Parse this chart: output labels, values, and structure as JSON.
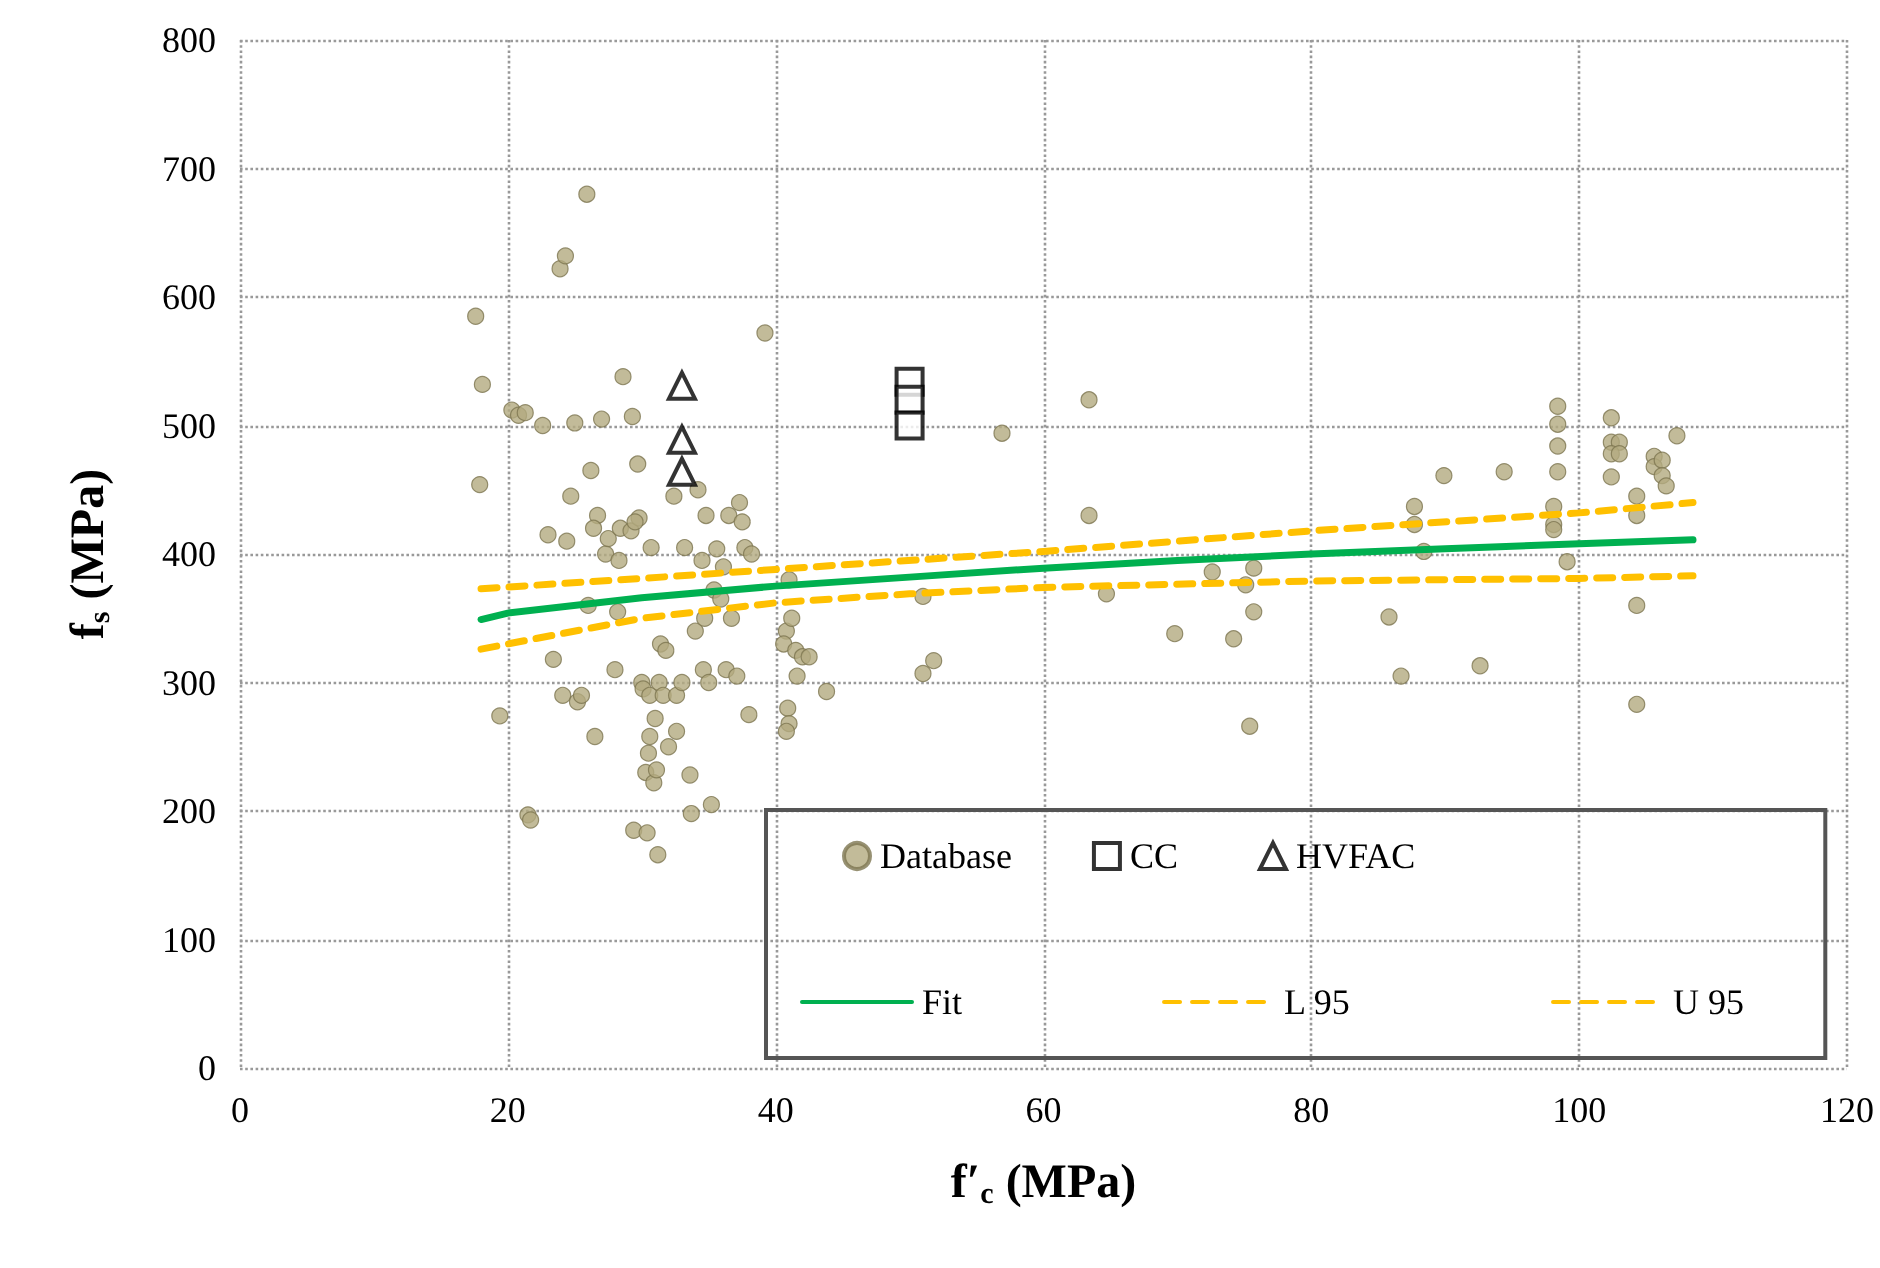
{
  "chart_data": {
    "type": "scatter",
    "xlabel": "f′$_{c}$ (MPa)",
    "ylabel": "f$_{s}$ (MPa)",
    "xlim": [
      0,
      120
    ],
    "xticks": [
      0,
      20,
      40,
      60,
      80,
      100,
      120
    ],
    "ylim": [
      0,
      800
    ],
    "yticks": [
      0,
      100,
      200,
      300,
      400,
      500,
      600,
      700,
      800
    ],
    "grid": true,
    "legend": "bottom right",
    "series": [
      {
        "name": "Database",
        "type": "scatter",
        "marker": "circle",
        "color": "#b3aa80",
        "x": [
          17.6,
          18.1,
          17.9,
          19.4,
          20.3,
          20.8,
          21.3,
          21.5,
          21.7,
          22.6,
          23.0,
          23.4,
          23.9,
          24.3,
          24.1,
          24.7,
          24.4,
          25.2,
          25.0,
          25.9,
          25.5,
          26.0,
          26.2,
          26.5,
          26.7,
          26.4,
          27.0,
          27.3,
          27.5,
          28.0,
          28.3,
          28.4,
          28.6,
          28.2,
          29.2,
          29.4,
          29.3,
          29.8,
          29.5,
          29.7,
          30.0,
          30.1,
          30.3,
          30.4,
          30.5,
          30.6,
          30.7,
          30.6,
          30.9,
          31.0,
          31.1,
          31.2,
          31.3,
          31.4,
          31.6,
          31.8,
          32.0,
          32.4,
          32.6,
          32.6,
          33.0,
          33.2,
          33.6,
          33.7,
          34.0,
          34.2,
          34.5,
          34.6,
          34.7,
          34.8,
          35.0,
          35.2,
          35.4,
          35.6,
          35.9,
          36.1,
          36.3,
          36.5,
          36.7,
          37.1,
          37.3,
          37.5,
          37.7,
          38.0,
          38.2,
          39.2,
          41.0,
          40.8,
          40.6,
          40.9,
          41.0,
          40.8,
          41.2,
          41.5,
          41.6,
          42.0,
          42.5,
          43.8,
          51.0,
          51.8,
          51.0,
          56.9,
          63.4,
          63.4,
          64.7,
          69.8,
          72.6,
          74.2,
          75.1,
          75.7,
          75.7,
          75.4,
          85.8,
          86.7,
          87.7,
          87.7,
          88.4,
          89.9,
          92.6,
          94.4,
          98.4,
          98.4,
          98.4,
          98.4,
          98.1,
          98.1,
          98.1,
          99.1,
          102.4,
          102.4,
          103.0,
          102.4,
          103.0,
          102.4,
          104.3,
          104.3,
          104.3,
          104.3,
          105.6,
          105.6,
          106.2,
          106.2,
          106.5,
          107.3
        ],
        "values": [
          585,
          532,
          454,
          274,
          512,
          508,
          510,
          197,
          193,
          500,
          415,
          318,
          622,
          632,
          290,
          445,
          410,
          285,
          502,
          680,
          290,
          360,
          465,
          258,
          430,
          420,
          505,
          400,
          412,
          310,
          395,
          420,
          538,
          355,
          418,
          185,
          507,
          428,
          425,
          470,
          300,
          295,
          230,
          183,
          245,
          258,
          405,
          290,
          222,
          272,
          232,
          166,
          300,
          330,
          290,
          325,
          250,
          445,
          290,
          262,
          300,
          405,
          228,
          198,
          340,
          450,
          395,
          310,
          350,
          430,
          300,
          205,
          372,
          404,
          365,
          390,
          310,
          430,
          350,
          305,
          440,
          425,
          405,
          275,
          400,
          572,
          380,
          340,
          330,
          280,
          268,
          262,
          350,
          325,
          305,
          320,
          320,
          293,
          307,
          317,
          367,
          494,
          520,
          430,
          369,
          338,
          386,
          334,
          376,
          389,
          355,
          266,
          351,
          305,
          437,
          423,
          402,
          461,
          313,
          464,
          515,
          501,
          484,
          464,
          437,
          423,
          419,
          394,
          506,
          487,
          487,
          478,
          478,
          460,
          445,
          430,
          360,
          283,
          476,
          468,
          473,
          461,
          453,
          492
        ]
      },
      {
        "name": "CC",
        "type": "scatter",
        "marker": "square",
        "color": "#000000",
        "x": [
          50,
          50,
          50
        ],
        "values": [
          534,
          520,
          500
        ]
      },
      {
        "name": "HVFAC",
        "type": "scatter",
        "marker": "triangle",
        "color": "#000000",
        "x": [
          33,
          33,
          33
        ],
        "values": [
          531,
          489,
          464
        ]
      },
      {
        "name": "Fit",
        "type": "line",
        "marker": "none",
        "line_style": "solid",
        "color": "#00b050",
        "x": [
          18,
          20,
          30,
          40,
          50,
          60,
          70,
          80,
          90,
          100,
          108.5
        ],
        "values": [
          349,
          354,
          366,
          375,
          382,
          389,
          395,
          400,
          404,
          408,
          411
        ]
      },
      {
        "name": "L 95",
        "type": "line",
        "marker": "none",
        "line_style": "dashed",
        "color": "#ffc000",
        "x": [
          18,
          30,
          40,
          50,
          60,
          80,
          100,
          108.5
        ],
        "values": [
          326,
          350,
          362,
          369,
          374,
          379,
          381,
          383
        ]
      },
      {
        "name": "U 95",
        "type": "line",
        "marker": "none",
        "line_style": "dashed",
        "color": "#ffc000",
        "x": [
          18,
          30,
          40,
          60,
          80,
          100,
          108.5
        ],
        "values": [
          373,
          381,
          388,
          402,
          418,
          432,
          440
        ]
      }
    ]
  }
}
